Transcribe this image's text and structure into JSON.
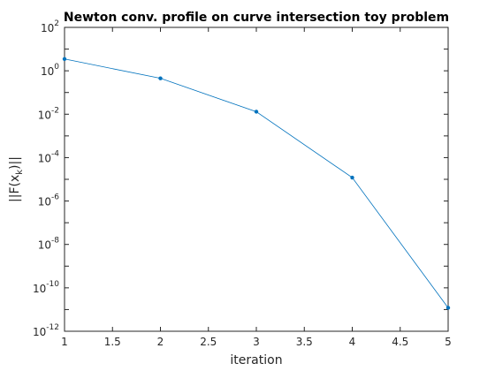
{
  "chart_data": {
    "type": "line",
    "title": "Newton conv. profile on curve intersection toy problem",
    "xlabel": "iteration",
    "ylabel": {
      "prefix": "||F(x",
      "subscript": "k",
      "suffix": ")||"
    },
    "x": [
      1,
      2,
      3,
      4,
      5
    ],
    "series": [
      {
        "values": [
          3.5,
          0.45,
          0.013,
          1.2e-05,
          1.2e-11
        ],
        "color": "#0072BD",
        "marker": "dot"
      }
    ],
    "xlim": [
      1,
      5
    ],
    "ylim": [
      1e-12,
      100
    ],
    "yscale": "log",
    "xticks": [
      "1",
      "1.5",
      "2",
      "2.5",
      "3",
      "3.5",
      "4",
      "4.5",
      "5"
    ],
    "yticks": [
      {
        "base": "10",
        "exp": "-12"
      },
      {
        "base": "10",
        "exp": "-10"
      },
      {
        "base": "10",
        "exp": "-8"
      },
      {
        "base": "10",
        "exp": "-6"
      },
      {
        "base": "10",
        "exp": "-4"
      },
      {
        "base": "10",
        "exp": "-2"
      },
      {
        "base": "10",
        "exp": "0"
      },
      {
        "base": "10",
        "exp": "2"
      }
    ],
    "grid": false,
    "box": true
  }
}
